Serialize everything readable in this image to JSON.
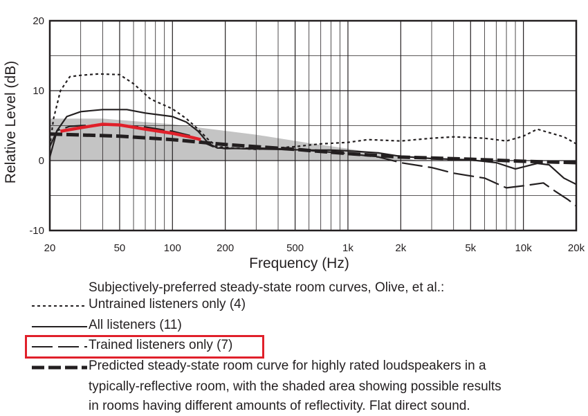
{
  "chart_data": {
    "type": "line",
    "title": "",
    "xlabel": "Frequency (Hz)",
    "ylabel": "Relative Level (dB)",
    "x_scale": "log",
    "xlim": [
      20,
      20000
    ],
    "ylim": [
      -10,
      20
    ],
    "grid": true,
    "x_ticks": [
      20,
      50,
      100,
      200,
      500,
      1000,
      2000,
      5000,
      10000,
      20000
    ],
    "x_tick_labels": [
      "20",
      "50",
      "100",
      "200",
      "500",
      "1k",
      "2k",
      "5k",
      "10k",
      "20k"
    ],
    "y_ticks": [
      -10,
      0,
      10,
      20
    ],
    "y_tick_labels": [
      "-10",
      "0",
      "10",
      "20"
    ],
    "shaded_area": {
      "upper": [
        [
          20,
          6
        ],
        [
          40,
          6
        ],
        [
          100,
          5.2
        ],
        [
          300,
          3.7
        ],
        [
          600,
          2.5
        ],
        [
          1000,
          1.7
        ],
        [
          2000,
          0.5
        ],
        [
          2500,
          0
        ]
      ],
      "lower": [
        [
          20,
          0
        ],
        [
          2500,
          0
        ]
      ],
      "color": "#c4c4c4"
    },
    "series": [
      {
        "name": "Untrained listeners only (4)",
        "style": "dotted",
        "color": "#231f20",
        "points": [
          [
            20,
            2
          ],
          [
            21,
            6
          ],
          [
            23,
            10
          ],
          [
            26,
            12
          ],
          [
            30,
            12.2
          ],
          [
            38,
            12.4
          ],
          [
            50,
            12.3
          ],
          [
            60,
            11
          ],
          [
            75,
            8.8
          ],
          [
            100,
            7.4
          ],
          [
            120,
            6
          ],
          [
            140,
            4.5
          ],
          [
            160,
            3
          ],
          [
            180,
            2
          ],
          [
            220,
            1.8
          ],
          [
            300,
            1.6
          ],
          [
            500,
            2
          ],
          [
            700,
            2.4
          ],
          [
            1000,
            2.6
          ],
          [
            1300,
            3
          ],
          [
            2000,
            2.8
          ],
          [
            3000,
            3.2
          ],
          [
            4000,
            3.4
          ],
          [
            6000,
            3.2
          ],
          [
            8000,
            2.8
          ],
          [
            10000,
            3.5
          ],
          [
            12000,
            4.5
          ],
          [
            14000,
            4
          ],
          [
            17000,
            3.4
          ],
          [
            20000,
            2.4
          ]
        ]
      },
      {
        "name": "All listeners (11)",
        "style": "solid",
        "color": "#231f20",
        "points": [
          [
            20,
            0.5
          ],
          [
            22,
            4.3
          ],
          [
            25,
            6.3
          ],
          [
            30,
            7
          ],
          [
            40,
            7.3
          ],
          [
            55,
            7.3
          ],
          [
            70,
            6.8
          ],
          [
            100,
            6.3
          ],
          [
            120,
            5.5
          ],
          [
            140,
            4.2
          ],
          [
            160,
            2.5
          ],
          [
            180,
            1.8
          ],
          [
            250,
            1.7
          ],
          [
            400,
            1.6
          ],
          [
            600,
            1.5
          ],
          [
            800,
            1.5
          ],
          [
            1000,
            1.4
          ],
          [
            1500,
            1.1
          ],
          [
            2000,
            0.6
          ],
          [
            3000,
            0.3
          ],
          [
            5000,
            0.1
          ],
          [
            7000,
            -0.3
          ],
          [
            9000,
            -1.2
          ],
          [
            12000,
            -0.4
          ],
          [
            14000,
            -0.6
          ],
          [
            17000,
            -2.5
          ],
          [
            20000,
            -3.4
          ]
        ]
      },
      {
        "name": "Trained listeners only (7)",
        "style": "longdash",
        "color": "#231f20",
        "points": [
          [
            20,
            2
          ],
          [
            22,
            4.3
          ],
          [
            26,
            4.9
          ],
          [
            30,
            5
          ],
          [
            40,
            5.1
          ],
          [
            55,
            5
          ],
          [
            70,
            4.8
          ],
          [
            100,
            4.2
          ],
          [
            130,
            3.5
          ],
          [
            150,
            2.6
          ],
          [
            170,
            2
          ],
          [
            200,
            1.7
          ],
          [
            300,
            1.8
          ],
          [
            500,
            1.6
          ],
          [
            800,
            1.2
          ],
          [
            1000,
            1
          ],
          [
            1500,
            0.5
          ],
          [
            2000,
            -0.3
          ],
          [
            3000,
            -1
          ],
          [
            4000,
            -1.8
          ],
          [
            5000,
            -2.2
          ],
          [
            6000,
            -2.5
          ],
          [
            8000,
            -3.9
          ],
          [
            10000,
            -3.6
          ],
          [
            13000,
            -3.2
          ],
          [
            15000,
            -4.3
          ],
          [
            18000,
            -5.6
          ],
          [
            20000,
            -6.5
          ]
        ]
      },
      {
        "name": "Predicted steady-state room curve",
        "style": "heavydash",
        "color": "#231f20",
        "points": [
          [
            20,
            3.8
          ],
          [
            50,
            3.5
          ],
          [
            100,
            3
          ],
          [
            200,
            2.3
          ],
          [
            500,
            1.6
          ],
          [
            1000,
            1
          ],
          [
            2000,
            0.5
          ],
          [
            5000,
            0.2
          ],
          [
            10000,
            -0.1
          ],
          [
            20000,
            -0.3
          ]
        ]
      },
      {
        "name": "highlight",
        "style": "red",
        "color": "#e0202a",
        "points": [
          [
            23,
            4.2
          ],
          [
            30,
            4.7
          ],
          [
            40,
            5.2
          ],
          [
            50,
            5.1
          ],
          [
            70,
            4.5
          ],
          [
            100,
            3.9
          ],
          [
            130,
            3.3
          ],
          [
            145,
            3.0
          ]
        ]
      }
    ]
  },
  "legend": {
    "title": "Subjectively-preferred steady-state room curves, Olive, et al.:",
    "items": [
      {
        "label": "Untrained listeners only (4)",
        "style": "dotted"
      },
      {
        "label": "All listeners (11)",
        "style": "solid"
      },
      {
        "label": "Trained listeners only (7)",
        "style": "longdash"
      },
      {
        "label": "Predicted steady-state room curve for highly rated loudspeakers in a",
        "style": "heavydash"
      }
    ],
    "description_lines": [
      "typically-reflective room, with the shaded area showing possible results",
      "in rooms having different amounts of reflectivity.  Flat direct sound."
    ],
    "highlight_color": "#e0202a"
  }
}
